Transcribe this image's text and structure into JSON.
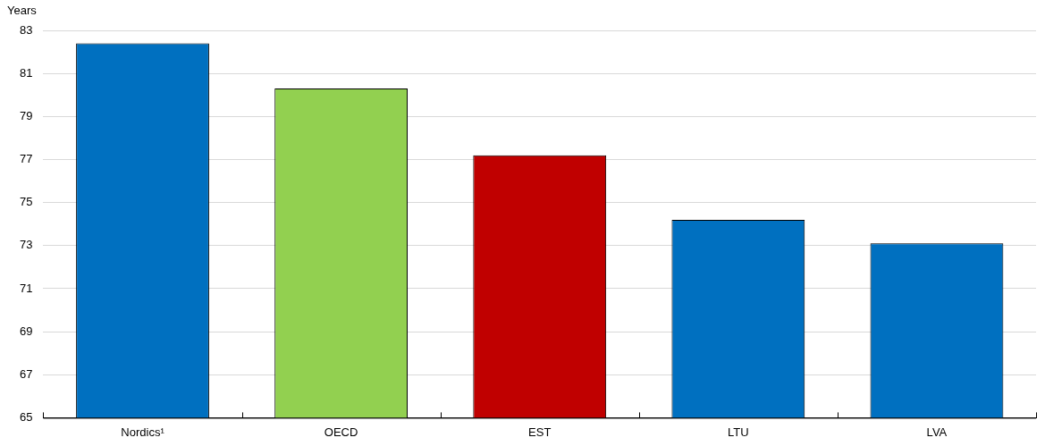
{
  "chart_data": {
    "type": "bar",
    "ylabel": "Years",
    "categories": [
      "Nordics¹",
      "OECD",
      "EST",
      "LTU",
      "LVA"
    ],
    "values": [
      82.4,
      80.3,
      77.2,
      74.2,
      73.1
    ],
    "colors": [
      "#0070c0",
      "#92d050",
      "#c00000",
      "#0070c0",
      "#0070c0"
    ],
    "ylim": [
      65,
      83
    ],
    "yticks": [
      65,
      67,
      69,
      71,
      73,
      75,
      77,
      79,
      81,
      83
    ],
    "grid": "y",
    "legend": false
  }
}
